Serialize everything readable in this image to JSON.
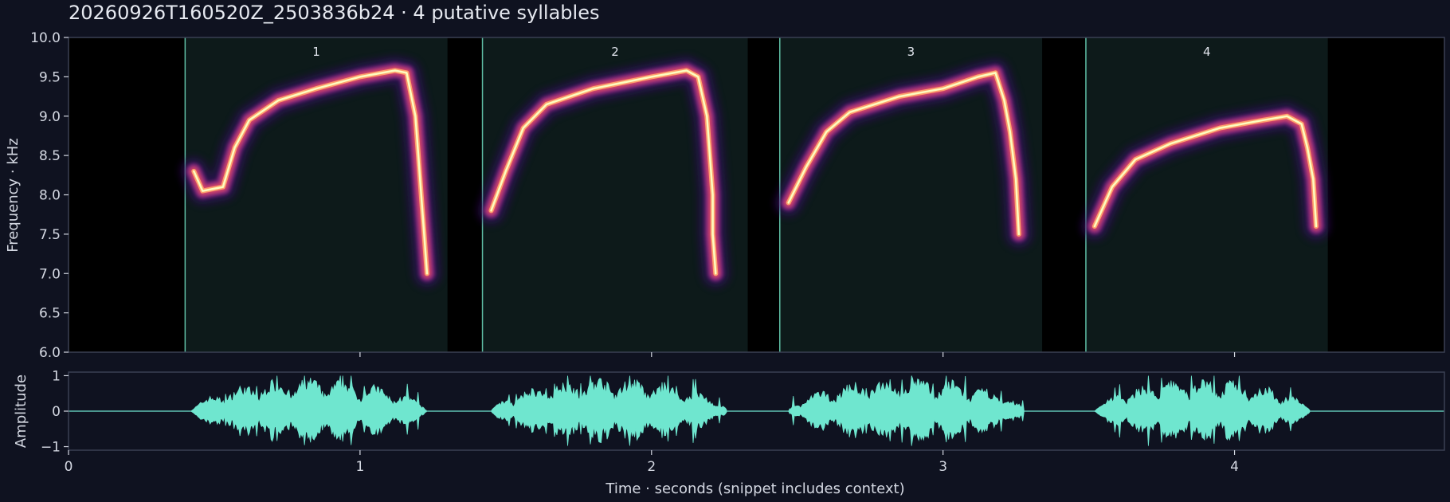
{
  "title": "20260926T160520Z_2503836b24  ·  4 putative syllables",
  "colors": {
    "background": "#0f1220",
    "panel_border": "#3a4052",
    "segment_fill": "#0d1a1a",
    "segment_line": "#5fbfa6",
    "waveform": "#6fe6cf",
    "spectrogram_colormap": [
      "#000004",
      "#3b0f70",
      "#8c2981",
      "#de4968",
      "#fe9f6d",
      "#fcfdbf"
    ]
  },
  "chart_data": [
    {
      "type": "heatmap",
      "subtype": "spectrogram",
      "xlabel": "",
      "ylabel": "Frequency · kHz",
      "xlim": [
        0,
        4.72
      ],
      "ylim": [
        6.0,
        10.0
      ],
      "yticks": [
        "6.0",
        "6.5",
        "7.0",
        "7.5",
        "8.0",
        "8.5",
        "9.0",
        "9.5",
        "10.0"
      ],
      "ytick_values": [
        6.0,
        6.5,
        7.0,
        7.5,
        8.0,
        8.5,
        9.0,
        9.5,
        10.0
      ],
      "xtick_values": [
        1,
        2,
        3,
        4
      ],
      "segments": [
        {
          "label": "1",
          "start": 0.4,
          "end": 1.3
        },
        {
          "label": "2",
          "start": 1.42,
          "end": 2.33
        },
        {
          "label": "3",
          "start": 2.44,
          "end": 3.34
        },
        {
          "label": "4",
          "start": 3.49,
          "end": 4.32
        }
      ],
      "syllable_contours": [
        {
          "label": "1",
          "points": [
            [
              0.43,
              8.3
            ],
            [
              0.46,
              8.05
            ],
            [
              0.53,
              8.1
            ],
            [
              0.57,
              8.6
            ],
            [
              0.62,
              8.95
            ],
            [
              0.72,
              9.2
            ],
            [
              0.85,
              9.35
            ],
            [
              1.0,
              9.5
            ],
            [
              1.12,
              9.58
            ],
            [
              1.16,
              9.55
            ],
            [
              1.19,
              9.0
            ],
            [
              1.2,
              8.5
            ],
            [
              1.21,
              8.0
            ],
            [
              1.22,
              7.5
            ],
            [
              1.23,
              7.0
            ]
          ]
        },
        {
          "label": "2",
          "points": [
            [
              1.45,
              7.8
            ],
            [
              1.5,
              8.3
            ],
            [
              1.56,
              8.85
            ],
            [
              1.64,
              9.15
            ],
            [
              1.8,
              9.35
            ],
            [
              2.0,
              9.5
            ],
            [
              2.12,
              9.58
            ],
            [
              2.16,
              9.5
            ],
            [
              2.19,
              9.0
            ],
            [
              2.2,
              8.5
            ],
            [
              2.21,
              8.0
            ],
            [
              2.21,
              7.5
            ],
            [
              2.22,
              7.0
            ]
          ]
        },
        {
          "label": "3",
          "points": [
            [
              2.47,
              7.9
            ],
            [
              2.53,
              8.35
            ],
            [
              2.6,
              8.8
            ],
            [
              2.68,
              9.05
            ],
            [
              2.85,
              9.25
            ],
            [
              3.0,
              9.35
            ],
            [
              3.12,
              9.5
            ],
            [
              3.18,
              9.55
            ],
            [
              3.21,
              9.2
            ],
            [
              3.23,
              8.8
            ],
            [
              3.25,
              8.2
            ],
            [
              3.26,
              7.5
            ]
          ]
        },
        {
          "label": "4",
          "points": [
            [
              3.52,
              7.6
            ],
            [
              3.58,
              8.1
            ],
            [
              3.66,
              8.45
            ],
            [
              3.78,
              8.65
            ],
            [
              3.95,
              8.85
            ],
            [
              4.1,
              8.95
            ],
            [
              4.18,
              9.0
            ],
            [
              4.23,
              8.9
            ],
            [
              4.25,
              8.6
            ],
            [
              4.27,
              8.2
            ],
            [
              4.28,
              7.6
            ]
          ]
        }
      ]
    },
    {
      "type": "area",
      "subtype": "waveform",
      "xlabel": "Time · seconds (snippet includes context)",
      "ylabel": "Amplitude",
      "xlim": [
        0,
        4.72
      ],
      "ylim": [
        -1.1,
        1.1
      ],
      "xticks": [
        "0",
        "1",
        "2",
        "3",
        "4"
      ],
      "xtick_values": [
        0,
        1,
        2,
        3,
        4
      ],
      "yticks": [
        "1",
        "0",
        "−1"
      ],
      "ytick_values": [
        1,
        0,
        -1
      ],
      "bursts": [
        {
          "start": 0.42,
          "end": 1.23,
          "peak": 1.0
        },
        {
          "start": 1.45,
          "end": 2.26,
          "peak": 1.0
        },
        {
          "start": 2.47,
          "end": 3.28,
          "peak": 1.0
        },
        {
          "start": 3.52,
          "end": 4.26,
          "peak": 1.0
        }
      ]
    }
  ]
}
